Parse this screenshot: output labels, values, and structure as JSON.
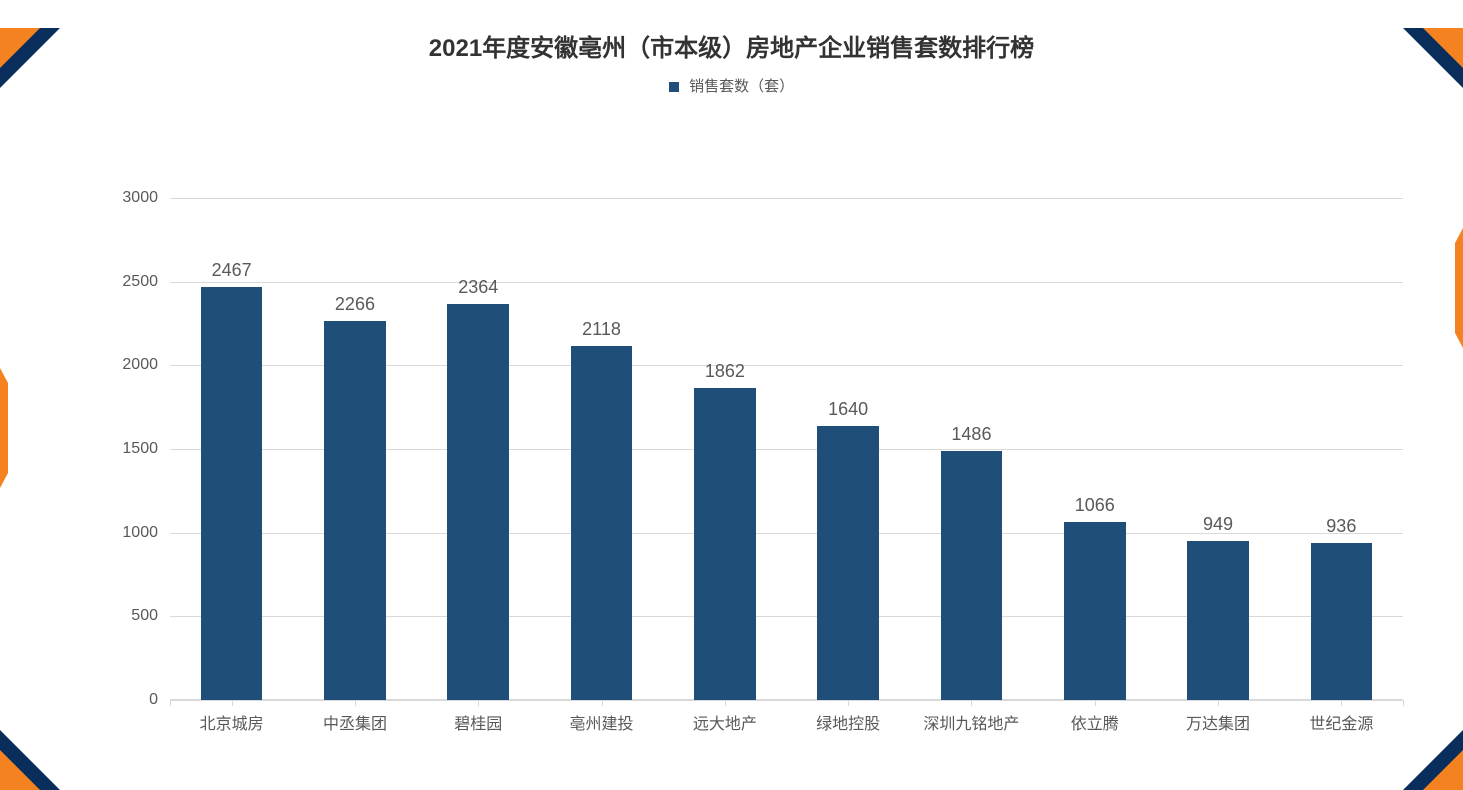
{
  "chart": {
    "type": "bar",
    "title": "2021年度安徽亳州（市本级）房地产企业销售套数排行榜",
    "title_fontsize": 24,
    "title_color": "#333333",
    "legend_label": "销售套数（套）",
    "legend_fontsize": 15,
    "legend_color": "#595959",
    "legend_marker_color": "#1f4e79",
    "categories": [
      "北京城房",
      "中丞集团",
      "碧桂园",
      "亳州建投",
      "远大地产",
      "绿地控股",
      "深圳九铭地产",
      "依立腾",
      "万达集团",
      "世纪金源"
    ],
    "values": [
      2467,
      2266,
      2364,
      2118,
      1862,
      1640,
      1486,
      1066,
      949,
      936
    ],
    "bar_color": "#1f4e79",
    "bar_width": 0.5,
    "value_label_fontsize": 18,
    "value_label_color": "#595959",
    "x_label_fontsize": 16,
    "x_label_color": "#595959",
    "y_label_fontsize": 16,
    "y_label_color": "#595959",
    "ylim": [
      0,
      3000
    ],
    "ytick_step": 500,
    "yticks": [
      0,
      500,
      1000,
      1500,
      2000,
      2500,
      3000
    ],
    "grid_color": "#d9d9d9",
    "axis_color": "#d9d9d9",
    "background_color": "#ffffff"
  },
  "decoration": {
    "corner_primary_color": "#0a2e5c",
    "corner_accent_color": "#f58220"
  }
}
